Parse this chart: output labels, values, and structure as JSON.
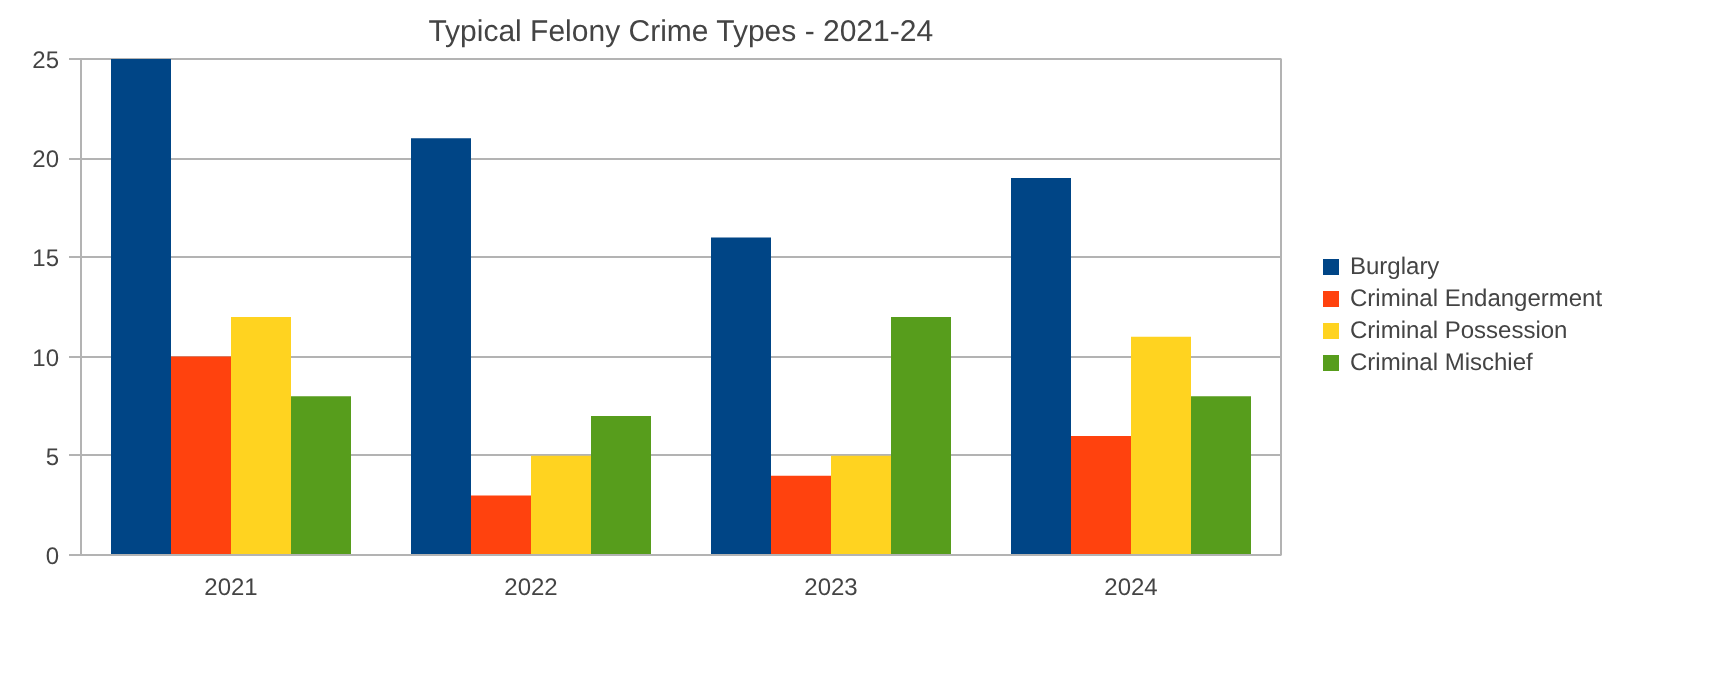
{
  "chart_data": {
    "type": "bar",
    "title": "Typical Felony Crime Types - 2021-24",
    "categories": [
      "2021",
      "2022",
      "2023",
      "2024"
    ],
    "series": [
      {
        "name": "Burglary",
        "color": "#004586",
        "values": [
          25,
          21,
          16,
          19
        ]
      },
      {
        "name": "Criminal Endangerment",
        "color": "#ff420e",
        "values": [
          10,
          3,
          4,
          6
        ]
      },
      {
        "name": "Criminal Possession",
        "color": "#ffd320",
        "values": [
          12,
          5,
          5,
          11
        ]
      },
      {
        "name": "Criminal Mischief",
        "color": "#579d1c",
        "values": [
          8,
          7,
          12,
          8
        ]
      }
    ],
    "ylim": [
      0,
      25
    ],
    "yticks": [
      0,
      5,
      10,
      15,
      20,
      25
    ],
    "grid": "y",
    "legend": "right"
  }
}
